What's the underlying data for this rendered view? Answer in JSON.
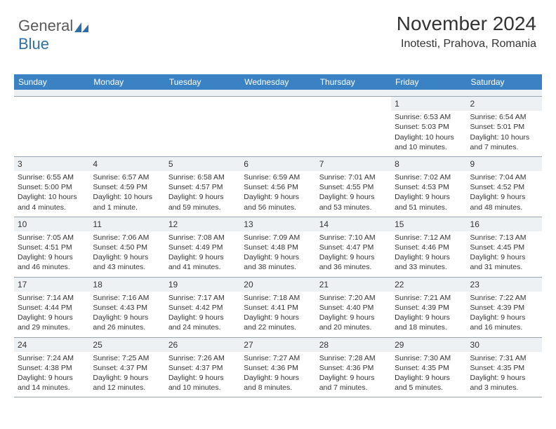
{
  "logo": {
    "text1": "General",
    "text2": "Blue"
  },
  "header": {
    "title": "November 2024",
    "location": "Inotesti, Prahova, Romania"
  },
  "colors": {
    "header_bg": "#3b82c4",
    "header_text": "#ffffff",
    "daynum_bg": "#eef1f4",
    "border": "#9aa7b3",
    "text": "#333333",
    "logo_gray": "#5a5a5a",
    "logo_blue": "#2f6fa8"
  },
  "weekdays": [
    "Sunday",
    "Monday",
    "Tuesday",
    "Wednesday",
    "Thursday",
    "Friday",
    "Saturday"
  ],
  "weeks": [
    [
      {
        "blank": true
      },
      {
        "blank": true
      },
      {
        "blank": true
      },
      {
        "blank": true
      },
      {
        "blank": true
      },
      {
        "day": "1",
        "sunrise": "Sunrise: 6:53 AM",
        "sunset": "Sunset: 5:03 PM",
        "daylight": "Daylight: 10 hours and 10 minutes."
      },
      {
        "day": "2",
        "sunrise": "Sunrise: 6:54 AM",
        "sunset": "Sunset: 5:01 PM",
        "daylight": "Daylight: 10 hours and 7 minutes."
      }
    ],
    [
      {
        "day": "3",
        "sunrise": "Sunrise: 6:55 AM",
        "sunset": "Sunset: 5:00 PM",
        "daylight": "Daylight: 10 hours and 4 minutes."
      },
      {
        "day": "4",
        "sunrise": "Sunrise: 6:57 AM",
        "sunset": "Sunset: 4:59 PM",
        "daylight": "Daylight: 10 hours and 1 minute."
      },
      {
        "day": "5",
        "sunrise": "Sunrise: 6:58 AM",
        "sunset": "Sunset: 4:57 PM",
        "daylight": "Daylight: 9 hours and 59 minutes."
      },
      {
        "day": "6",
        "sunrise": "Sunrise: 6:59 AM",
        "sunset": "Sunset: 4:56 PM",
        "daylight": "Daylight: 9 hours and 56 minutes."
      },
      {
        "day": "7",
        "sunrise": "Sunrise: 7:01 AM",
        "sunset": "Sunset: 4:55 PM",
        "daylight": "Daylight: 9 hours and 53 minutes."
      },
      {
        "day": "8",
        "sunrise": "Sunrise: 7:02 AM",
        "sunset": "Sunset: 4:53 PM",
        "daylight": "Daylight: 9 hours and 51 minutes."
      },
      {
        "day": "9",
        "sunrise": "Sunrise: 7:04 AM",
        "sunset": "Sunset: 4:52 PM",
        "daylight": "Daylight: 9 hours and 48 minutes."
      }
    ],
    [
      {
        "day": "10",
        "sunrise": "Sunrise: 7:05 AM",
        "sunset": "Sunset: 4:51 PM",
        "daylight": "Daylight: 9 hours and 46 minutes."
      },
      {
        "day": "11",
        "sunrise": "Sunrise: 7:06 AM",
        "sunset": "Sunset: 4:50 PM",
        "daylight": "Daylight: 9 hours and 43 minutes."
      },
      {
        "day": "12",
        "sunrise": "Sunrise: 7:08 AM",
        "sunset": "Sunset: 4:49 PM",
        "daylight": "Daylight: 9 hours and 41 minutes."
      },
      {
        "day": "13",
        "sunrise": "Sunrise: 7:09 AM",
        "sunset": "Sunset: 4:48 PM",
        "daylight": "Daylight: 9 hours and 38 minutes."
      },
      {
        "day": "14",
        "sunrise": "Sunrise: 7:10 AM",
        "sunset": "Sunset: 4:47 PM",
        "daylight": "Daylight: 9 hours and 36 minutes."
      },
      {
        "day": "15",
        "sunrise": "Sunrise: 7:12 AM",
        "sunset": "Sunset: 4:46 PM",
        "daylight": "Daylight: 9 hours and 33 minutes."
      },
      {
        "day": "16",
        "sunrise": "Sunrise: 7:13 AM",
        "sunset": "Sunset: 4:45 PM",
        "daylight": "Daylight: 9 hours and 31 minutes."
      }
    ],
    [
      {
        "day": "17",
        "sunrise": "Sunrise: 7:14 AM",
        "sunset": "Sunset: 4:44 PM",
        "daylight": "Daylight: 9 hours and 29 minutes."
      },
      {
        "day": "18",
        "sunrise": "Sunrise: 7:16 AM",
        "sunset": "Sunset: 4:43 PM",
        "daylight": "Daylight: 9 hours and 26 minutes."
      },
      {
        "day": "19",
        "sunrise": "Sunrise: 7:17 AM",
        "sunset": "Sunset: 4:42 PM",
        "daylight": "Daylight: 9 hours and 24 minutes."
      },
      {
        "day": "20",
        "sunrise": "Sunrise: 7:18 AM",
        "sunset": "Sunset: 4:41 PM",
        "daylight": "Daylight: 9 hours and 22 minutes."
      },
      {
        "day": "21",
        "sunrise": "Sunrise: 7:20 AM",
        "sunset": "Sunset: 4:40 PM",
        "daylight": "Daylight: 9 hours and 20 minutes."
      },
      {
        "day": "22",
        "sunrise": "Sunrise: 7:21 AM",
        "sunset": "Sunset: 4:39 PM",
        "daylight": "Daylight: 9 hours and 18 minutes."
      },
      {
        "day": "23",
        "sunrise": "Sunrise: 7:22 AM",
        "sunset": "Sunset: 4:39 PM",
        "daylight": "Daylight: 9 hours and 16 minutes."
      }
    ],
    [
      {
        "day": "24",
        "sunrise": "Sunrise: 7:24 AM",
        "sunset": "Sunset: 4:38 PM",
        "daylight": "Daylight: 9 hours and 14 minutes."
      },
      {
        "day": "25",
        "sunrise": "Sunrise: 7:25 AM",
        "sunset": "Sunset: 4:37 PM",
        "daylight": "Daylight: 9 hours and 12 minutes."
      },
      {
        "day": "26",
        "sunrise": "Sunrise: 7:26 AM",
        "sunset": "Sunset: 4:37 PM",
        "daylight": "Daylight: 9 hours and 10 minutes."
      },
      {
        "day": "27",
        "sunrise": "Sunrise: 7:27 AM",
        "sunset": "Sunset: 4:36 PM",
        "daylight": "Daylight: 9 hours and 8 minutes."
      },
      {
        "day": "28",
        "sunrise": "Sunrise: 7:28 AM",
        "sunset": "Sunset: 4:36 PM",
        "daylight": "Daylight: 9 hours and 7 minutes."
      },
      {
        "day": "29",
        "sunrise": "Sunrise: 7:30 AM",
        "sunset": "Sunset: 4:35 PM",
        "daylight": "Daylight: 9 hours and 5 minutes."
      },
      {
        "day": "30",
        "sunrise": "Sunrise: 7:31 AM",
        "sunset": "Sunset: 4:35 PM",
        "daylight": "Daylight: 9 hours and 3 minutes."
      }
    ]
  ]
}
